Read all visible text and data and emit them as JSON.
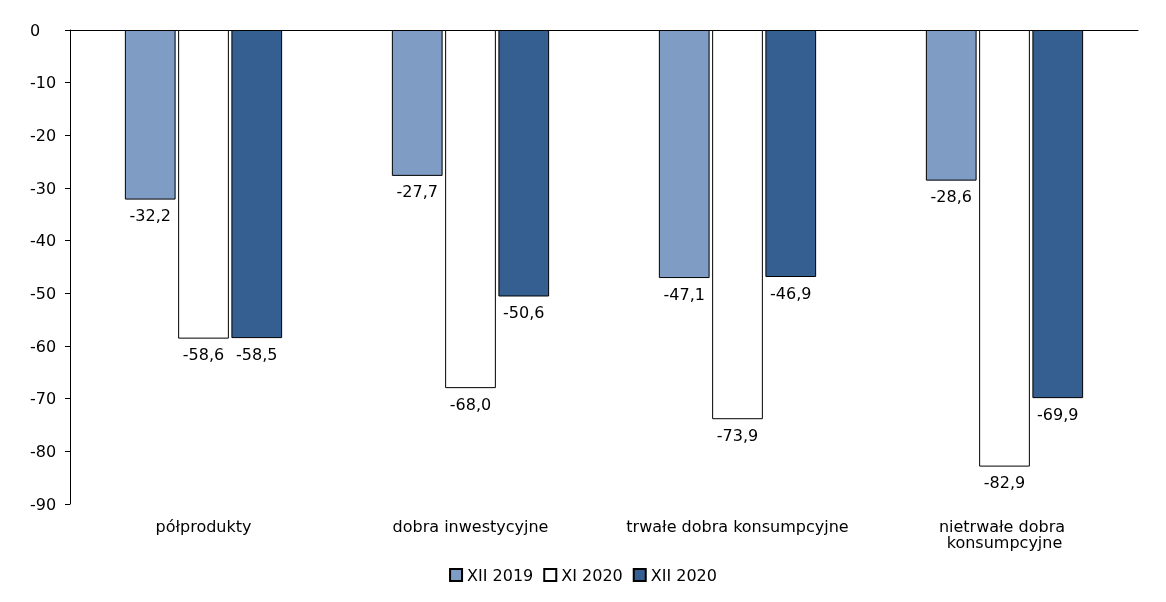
{
  "chart_data": {
    "type": "bar",
    "categories": [
      "półprodukty",
      "dobra inwestycyjne",
      "trwałe dobra konsumpcyjne",
      "nietrwałe dobra konsumpcyjne"
    ],
    "series": [
      {
        "name": "XII 2019",
        "color": "#7f9cc4",
        "values": [
          -32.2,
          -27.7,
          -47.1,
          -28.6
        ],
        "value_labels": [
          "-32,2",
          "-27,7",
          "-47,1",
          "-28,6"
        ]
      },
      {
        "name": "XI 2020",
        "color": "#ffffff",
        "values": [
          -58.6,
          -68.0,
          -73.9,
          -82.9
        ],
        "value_labels": [
          "-58,6",
          "-68,0",
          "-73,9",
          "-82,9"
        ]
      },
      {
        "name": "XII 2020",
        "color": "#365f91",
        "values": [
          -58.5,
          -50.6,
          -46.9,
          -69.9
        ],
        "value_labels": [
          "-58,5",
          "-50,6",
          "-46,9",
          "-69,9"
        ]
      }
    ],
    "ylim": [
      -90,
      0
    ],
    "yticks": [
      0,
      -10,
      -20,
      -30,
      -40,
      -50,
      -60,
      -70,
      -80,
      -90
    ],
    "grid": false,
    "legend": "bottom"
  }
}
